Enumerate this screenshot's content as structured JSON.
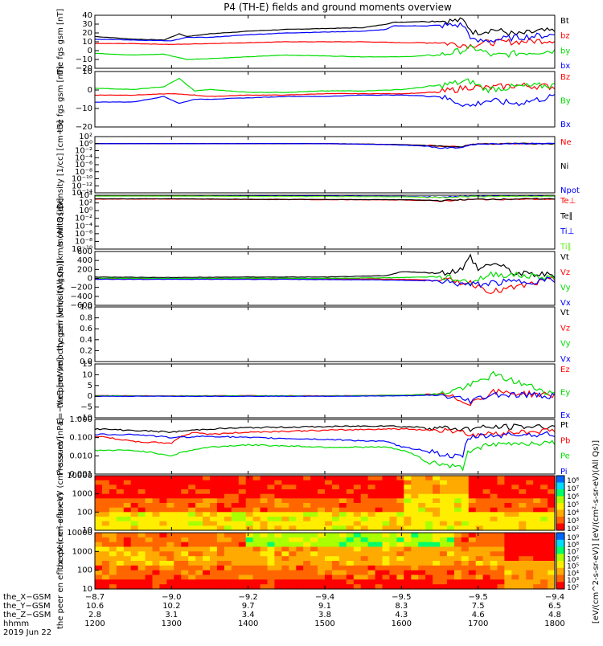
{
  "title": "P4 (TH-E) fields and ground moments overview",
  "colors": {
    "black": "#000000",
    "red": "#ff0000",
    "green": "#00dd00",
    "blue": "#0000ff",
    "lightgreen": "#66ee22",
    "orange": "#ff9900",
    "yellow": "#ffff00",
    "cyan": "#00ffff"
  },
  "chart_data": [
    {
      "type": "line",
      "title": "",
      "ylabel": "the fgs gsm [nT]",
      "ylim": [
        -20,
        40
      ],
      "yticks": [
        "40",
        "30",
        "20",
        "10",
        "0",
        "−10",
        "−20"
      ],
      "series": [
        {
          "name": "Bt",
          "color": "#000000",
          "x": [
            12.0,
            12.5,
            12.9,
            13.1,
            13.2,
            13.5,
            14.0,
            14.5,
            15.0,
            15.5,
            15.8,
            15.9,
            16.3,
            16.8,
            16.95,
            17.2,
            17.5,
            17.8,
            18.0
          ],
          "values": [
            16,
            13,
            12,
            19,
            16,
            19,
            22,
            24,
            25,
            26,
            30,
            32,
            33,
            34,
            20,
            24,
            18,
            22,
            22
          ]
        },
        {
          "name": "bz",
          "color": "#ff0000",
          "x": [
            12.0,
            12.5,
            13.0,
            13.5,
            14.0,
            14.5,
            15.0,
            15.5,
            16.0,
            16.5,
            16.9,
            17.1,
            17.5,
            18.0
          ],
          "values": [
            8,
            8,
            7,
            8,
            9,
            10,
            10,
            10,
            9,
            9,
            6,
            9,
            10,
            12
          ]
        },
        {
          "name": "by",
          "color": "#00dd00",
          "x": [
            12.0,
            12.5,
            12.9,
            13.2,
            13.5,
            14.0,
            14.5,
            15.0,
            15.5,
            16.0,
            16.5,
            16.95,
            17.2,
            17.5,
            18.0
          ],
          "values": [
            -3,
            -5,
            -4,
            -10,
            -9,
            -7,
            -5,
            -6,
            -7,
            -7,
            -5,
            3,
            -6,
            -3,
            0
          ]
        },
        {
          "name": "bx",
          "color": "#0000ff",
          "x": [
            12.0,
            12.5,
            13.0,
            13.2,
            13.5,
            14.0,
            14.5,
            15.0,
            15.5,
            15.8,
            15.9,
            16.3,
            16.8,
            16.95,
            17.2,
            17.5,
            18.0
          ],
          "values": [
            13,
            12,
            11,
            15,
            15,
            18,
            20,
            21,
            22,
            24,
            28,
            28,
            29,
            10,
            12,
            15,
            18
          ]
        }
      ]
    },
    {
      "type": "line",
      "title": "",
      "ylabel": "the fgs gsm [nT]",
      "ylim": [
        -25,
        15
      ],
      "yticks": [
        "10",
        "0",
        "−10",
        "−20"
      ],
      "series": [
        {
          "name": "Bz",
          "color": "#ff0000",
          "x": [
            12.0,
            12.5,
            13.0,
            13.3,
            13.5,
            14.0,
            14.5,
            15.0,
            15.5,
            16.0,
            16.5,
            16.9,
            17.1,
            17.5,
            18.0
          ],
          "values": [
            -2,
            -2,
            -1,
            -2,
            -3,
            -2,
            -2,
            -1,
            -1,
            -1,
            0,
            4,
            3,
            5,
            4
          ]
        },
        {
          "name": "By",
          "color": "#00dd00",
          "x": [
            12.0,
            12.5,
            12.9,
            13.1,
            13.3,
            13.5,
            14.0,
            14.5,
            15.0,
            15.5,
            16.0,
            16.5,
            16.9,
            17.1,
            17.5,
            18.0
          ],
          "values": [
            3,
            2,
            4,
            10,
            1,
            2,
            0,
            0,
            1,
            1,
            2,
            5,
            8,
            2,
            4,
            5
          ]
        },
        {
          "name": "Bx",
          "color": "#0000ff",
          "x": [
            12.0,
            12.5,
            12.9,
            13.1,
            13.3,
            13.5,
            14.0,
            14.5,
            15.0,
            15.5,
            16.0,
            16.5,
            16.9,
            17.1,
            17.5,
            18.0
          ],
          "values": [
            -7,
            -7,
            -3,
            -8,
            -5,
            -5,
            -4,
            -3,
            -3,
            -2,
            -2,
            -3,
            -10,
            -6,
            -8,
            -3
          ]
        }
      ]
    },
    {
      "type": "line",
      "title": "",
      "ylabel": "Density [1/cc] [cm−3]",
      "yscale": "log",
      "yticks": [
        "10²",
        "10⁰",
        "10⁻²",
        "10⁻⁴",
        "10⁻⁶",
        "10⁻⁸",
        "10⁻¹⁰",
        "10⁻¹²",
        "10⁻¹⁴"
      ],
      "series": [
        {
          "name": "Ne",
          "color": "#ff0000",
          "x": [
            12.0,
            13.0,
            14.0,
            15.0,
            16.0,
            16.5,
            16.8,
            17.0,
            17.5,
            18.0
          ],
          "values": [
            1,
            1,
            1,
            1,
            0.5,
            0.2,
            0.1,
            0.8,
            1,
            1
          ]
        },
        {
          "name": "Ni",
          "color": "#000000",
          "x": [
            12.0,
            13.0,
            14.0,
            15.0,
            16.0,
            16.5,
            16.8,
            17.0,
            17.5,
            18.0
          ],
          "values": [
            1,
            1,
            1,
            1,
            0.5,
            0.2,
            0.1,
            0.8,
            1,
            1
          ]
        },
        {
          "name": "Npot",
          "color": "#0000ff",
          "x": [
            12.0,
            13.0,
            14.0,
            15.0,
            16.0,
            16.5,
            16.8,
            17.0,
            17.5,
            18.0
          ],
          "values": [
            1,
            1,
            1,
            1,
            0.4,
            0.05,
            0.08,
            0.8,
            1,
            1
          ]
        }
      ]
    },
    {
      "type": "line",
      "title": "",
      "ylabel": "momt3 [eV]",
      "yscale": "log",
      "yticks": [
        "10⁴",
        "10²",
        "10⁰",
        "10⁻²",
        "10⁻⁴",
        "10⁻⁶",
        "10⁻⁸",
        "10⁻¹⁰"
      ],
      "series": [
        {
          "name": "Te⊥",
          "color": "#ff0000",
          "x": [
            12.0,
            13.0,
            14.0,
            15.0,
            16.0,
            16.5,
            17.0,
            18.0
          ],
          "values": [
            1000,
            1000,
            800,
            700,
            600,
            300,
            800,
            1000
          ]
        },
        {
          "name": "Te∥",
          "color": "#000000",
          "x": [
            12.0,
            13.0,
            14.0,
            15.0,
            16.0,
            16.5,
            17.0,
            18.0
          ],
          "values": [
            1200,
            1200,
            900,
            800,
            700,
            400,
            900,
            1200
          ]
        },
        {
          "name": "Ti⊥",
          "color": "#0000ff",
          "x": [
            12.0,
            13.0,
            14.0,
            15.0,
            16.0,
            16.5,
            17.0,
            18.0
          ],
          "values": [
            8000,
            8000,
            7000,
            6000,
            5000,
            3000,
            6000,
            8000
          ]
        },
        {
          "name": "Ti∥",
          "color": "#66ee22",
          "x": [
            12.0,
            13.0,
            14.0,
            15.0,
            16.0,
            16.5,
            17.0,
            18.0
          ],
          "values": [
            6000,
            6000,
            5000,
            4500,
            4000,
            2500,
            5000,
            6000
          ]
        }
      ]
    },
    {
      "type": "line",
      "title": "",
      "ylabel": "the peir velocity gsm [km/s (All Qs)]",
      "ylim": [
        -600,
        600
      ],
      "yticks": [
        "600",
        "400",
        "200",
        "0",
        "−200",
        "−400",
        "−600"
      ],
      "series": [
        {
          "name": "Vt",
          "color": "#000000",
          "x": [
            12.0,
            13.0,
            14.0,
            15.0,
            15.8,
            16.0,
            16.5,
            16.8,
            16.9,
            17.0,
            17.2,
            17.5,
            18.0
          ],
          "values": [
            30,
            20,
            30,
            30,
            60,
            150,
            120,
            200,
            500,
            200,
            350,
            100,
            80
          ]
        },
        {
          "name": "Vz",
          "color": "#ff0000",
          "x": [
            12.0,
            13.0,
            14.0,
            15.0,
            16.0,
            16.5,
            16.9,
            17.2,
            18.0
          ],
          "values": [
            -10,
            -5,
            -10,
            -5,
            -20,
            -40,
            -100,
            -300,
            -20
          ]
        },
        {
          "name": "Vy",
          "color": "#00dd00",
          "x": [
            12.0,
            13.0,
            14.0,
            15.0,
            16.0,
            16.5,
            16.9,
            17.2,
            18.0
          ],
          "values": [
            5,
            0,
            5,
            0,
            20,
            40,
            -80,
            100,
            20
          ]
        },
        {
          "name": "Vx",
          "color": "#0000ff",
          "x": [
            12.0,
            13.0,
            14.0,
            15.0,
            16.0,
            16.5,
            16.9,
            17.2,
            18.0
          ],
          "values": [
            -20,
            -20,
            -20,
            -25,
            -40,
            -60,
            -150,
            -100,
            -30
          ]
        }
      ]
    },
    {
      "type": "line",
      "title": "",
      "ylabel": "the peer velocity gsm [km/s (All Qs)]",
      "ylim": [
        0,
        1
      ],
      "yticks": [
        "1.0",
        "0.8",
        "0.6",
        "0.4",
        "0.2",
        "0.0"
      ],
      "series": [
        {
          "name": "Vt",
          "color": "#000000",
          "x": [],
          "values": []
        },
        {
          "name": "Vz",
          "color": "#ff0000",
          "x": [],
          "values": []
        },
        {
          "name": "Vy",
          "color": "#00dd00",
          "x": [],
          "values": []
        },
        {
          "name": "Vx",
          "color": "#0000ff",
          "x": [],
          "values": []
        }
      ]
    },
    {
      "type": "line",
      "title": "",
      "ylabel": "E=−VxB [mV/m]",
      "ylim": [
        -10,
        15
      ],
      "yticks": [
        "15",
        "10",
        "5",
        "0",
        "−5",
        "−10"
      ],
      "series": [
        {
          "name": "Ez",
          "color": "#ff0000",
          "x": [
            12.0,
            13.0,
            14.0,
            15.0,
            16.0,
            16.5,
            16.9,
            17.2,
            18.0
          ],
          "values": [
            0.3,
            0.2,
            0.3,
            0.2,
            0.5,
            1,
            -3,
            2,
            0.5
          ]
        },
        {
          "name": "Ey",
          "color": "#00dd00",
          "x": [
            12.0,
            13.0,
            14.0,
            15.0,
            16.0,
            16.5,
            16.9,
            17.2,
            18.0
          ],
          "values": [
            0.2,
            0.1,
            0.2,
            0.1,
            0.5,
            1,
            5,
            10,
            1
          ]
        },
        {
          "name": "Ex",
          "color": "#0000ff",
          "x": [
            12.0,
            13.0,
            14.0,
            15.0,
            16.0,
            16.5,
            16.9,
            17.2,
            18.0
          ],
          "values": [
            0,
            0,
            0,
            0,
            0.2,
            0.5,
            -2,
            1,
            0.3
          ]
        }
      ]
    },
    {
      "type": "line",
      "title": "",
      "ylabel": "Pressure [nPa]",
      "yscale": "log",
      "yticks": [
        "1.000",
        "0.100",
        "0.010",
        "0.001"
      ],
      "series": [
        {
          "name": "Pt",
          "color": "#000000",
          "x": [
            12.0,
            12.5,
            13.0,
            13.5,
            14.0,
            15.0,
            15.8,
            16.0,
            16.5,
            16.8,
            16.9,
            17.0,
            17.5,
            18.0
          ],
          "values": [
            0.3,
            0.25,
            0.2,
            0.3,
            0.35,
            0.4,
            0.45,
            0.4,
            0.35,
            0.3,
            0.3,
            0.35,
            0.4,
            0.4
          ]
        },
        {
          "name": "Pb",
          "color": "#ff0000",
          "x": [
            12.0,
            12.5,
            13.0,
            13.3,
            13.5,
            14.0,
            15.0,
            15.8,
            16.0,
            16.5,
            16.8,
            16.9,
            17.0,
            17.5,
            18.0
          ],
          "values": [
            0.12,
            0.06,
            0.05,
            0.2,
            0.15,
            0.2,
            0.25,
            0.3,
            0.3,
            0.25,
            0.25,
            0.1,
            0.15,
            0.2,
            0.25
          ]
        },
        {
          "name": "Pe",
          "color": "#00dd00",
          "x": [
            12.0,
            12.5,
            13.0,
            13.5,
            14.0,
            15.0,
            15.8,
            16.0,
            16.3,
            16.6,
            16.8,
            16.9,
            17.0,
            17.5,
            18.0
          ],
          "values": [
            0.02,
            0.02,
            0.01,
            0.03,
            0.04,
            0.03,
            0.03,
            0.02,
            0.005,
            0.003,
            0.002,
            0.02,
            0.03,
            0.05,
            0.05
          ]
        },
        {
          "name": "Pi",
          "color": "#0000ff",
          "x": [
            12.0,
            12.5,
            13.0,
            13.5,
            14.0,
            15.0,
            15.8,
            16.0,
            16.3,
            16.6,
            16.8,
            16.9,
            17.0,
            17.5,
            18.0
          ],
          "values": [
            0.15,
            0.15,
            0.1,
            0.12,
            0.1,
            0.08,
            0.06,
            0.03,
            0.02,
            0.01,
            0.008,
            0.1,
            0.12,
            0.15,
            0.15
          ]
        }
      ]
    },
    {
      "type": "heatmap",
      "title": "",
      "ylabel": "the peir en eflux eV (cm²-s-sr-eV)",
      "yscale": "log",
      "yticks": [
        "10000",
        "1000",
        "100",
        "10"
      ],
      "colorbar": {
        "label": "[eV/(cm²-s-sr-eV)]",
        "ticks": [
          "10⁸",
          "10⁷",
          "10⁶",
          "10⁵",
          "10⁴",
          "10³",
          "10²"
        ]
      }
    },
    {
      "type": "heatmap",
      "title": "",
      "ylabel": "the peer en eflux eV (cm²-s-sr-eV)",
      "yscale": "log",
      "yticks": [
        "10000",
        "1000",
        "100",
        "10"
      ],
      "colorbar": {
        "label": "[eV/(cm²-s-sr-eV)]",
        "ticks": [
          "10⁹",
          "10⁸",
          "10⁷",
          "10⁶",
          "10⁵",
          "10⁴",
          "10³",
          "10²"
        ]
      }
    }
  ],
  "xaxis": {
    "rows": [
      {
        "label": "the_X−GSM",
        "values": [
          "−8.7",
          "−9.0",
          "−9.2",
          "−9.4",
          "−9.5",
          "−9.5",
          "−9.4"
        ]
      },
      {
        "label": "the_Y−GSM",
        "values": [
          "10.6",
          "10.2",
          "9.7",
          "9.1",
          "8.3",
          "7.5",
          "6.5"
        ]
      },
      {
        "label": "the_Z−GSM",
        "values": [
          "2.8",
          "3.1",
          "3.4",
          "3.8",
          "4.3",
          "4.6",
          "4.8"
        ]
      },
      {
        "label": "hhmm",
        "values": [
          "1200",
          "1300",
          "1400",
          "1500",
          "1600",
          "1700",
          "1800"
        ]
      }
    ],
    "date": "2019 Jun 22",
    "hours": [
      12,
      18
    ]
  },
  "colorbar_label": "[eV/(cm²-s-sr-eV)]",
  "side_colorbar_label": "[eV/(cm^2-s-sr-eV)]  [eV/(cm²-s-sr-eV)(All Qs)]"
}
